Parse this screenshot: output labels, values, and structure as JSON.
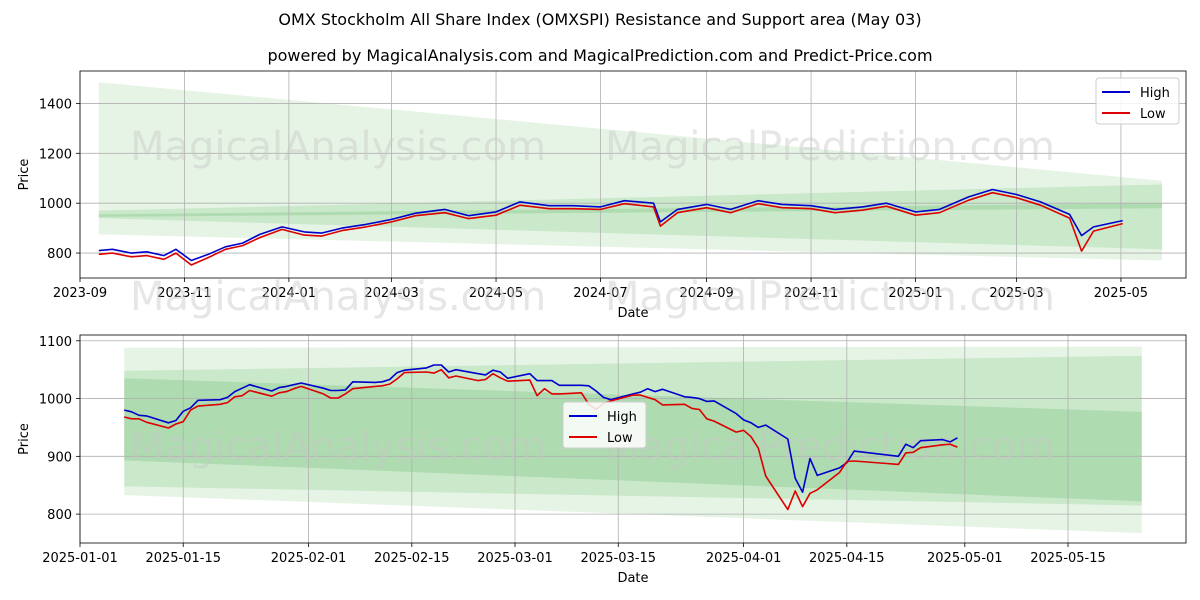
{
  "figure": {
    "title": "OMX Stockholm All Share Index (OMXSPI) Resistance and Support area (May 03)",
    "subtitle": "powered by MagicalAnalysis.com and MagicalPrediction.com and Predict-Price.com",
    "watermarks": [
      "MagicalAnalysis.com",
      "MagicalPrediction.com"
    ],
    "colors": {
      "high": "#0000cc",
      "low": "#dd0000",
      "band": "#4caf50"
    }
  },
  "chart_data": [
    {
      "type": "line",
      "xlabel": "Date",
      "ylabel": "Price",
      "xlim": [
        "2023-09-01",
        "2025-06-08"
      ],
      "ylim": [
        700,
        1530
      ],
      "x_ticks": [
        "2023-09",
        "2023-11",
        "2024-01",
        "2024-03",
        "2024-05",
        "2024-07",
        "2024-09",
        "2024-11",
        "2025-01",
        "2025-03",
        "2025-05"
      ],
      "y_ticks": [
        800,
        1000,
        1200,
        1400
      ],
      "grid": true,
      "legend": "top-right",
      "bands": [
        {
          "name": "outer",
          "x": [
            "2023-09-12",
            "2025-05-25"
          ],
          "upper": [
            1485,
            1090
          ],
          "lower": [
            875,
            770
          ]
        },
        {
          "name": "inner",
          "x": [
            "2023-09-12",
            "2025-05-25"
          ],
          "upper": [
            970,
            1075
          ],
          "lower": [
            940,
            815
          ]
        },
        {
          "name": "mid",
          "x": [
            "2023-09-12",
            "2025-05-25"
          ],
          "upper": [
            955,
            1000
          ],
          "lower": [
            945,
            980
          ]
        }
      ],
      "x": [
        "2023-09-12",
        "2023-09-20",
        "2023-10-01",
        "2023-10-10",
        "2023-10-20",
        "2023-10-27",
        "2023-11-05",
        "2023-11-15",
        "2023-11-25",
        "2023-12-05",
        "2023-12-15",
        "2023-12-28",
        "2024-01-10",
        "2024-01-20",
        "2024-02-01",
        "2024-02-15",
        "2024-03-01",
        "2024-03-15",
        "2024-04-01",
        "2024-04-15",
        "2024-05-01",
        "2024-05-15",
        "2024-06-01",
        "2024-06-15",
        "2024-07-01",
        "2024-07-15",
        "2024-08-01",
        "2024-08-05",
        "2024-08-15",
        "2024-09-01",
        "2024-09-15",
        "2024-10-01",
        "2024-10-15",
        "2024-11-01",
        "2024-11-15",
        "2024-12-01",
        "2024-12-15",
        "2025-01-01",
        "2025-01-15",
        "2025-02-01",
        "2025-02-15",
        "2025-03-01",
        "2025-03-15",
        "2025-04-01",
        "2025-04-08",
        "2025-04-15",
        "2025-05-02"
      ],
      "series": [
        {
          "name": "High",
          "values": [
            810,
            815,
            800,
            805,
            790,
            815,
            770,
            795,
            825,
            840,
            875,
            905,
            885,
            880,
            900,
            915,
            935,
            960,
            975,
            950,
            965,
            1005,
            990,
            990,
            985,
            1010,
            1000,
            925,
            975,
            995,
            975,
            1010,
            995,
            990,
            975,
            985,
            1000,
            965,
            975,
            1025,
            1055,
            1035,
            1005,
            955,
            870,
            905,
            930
          ]
        },
        {
          "name": "Low",
          "values": [
            795,
            800,
            785,
            790,
            775,
            800,
            752,
            782,
            815,
            830,
            862,
            895,
            872,
            868,
            890,
            905,
            925,
            950,
            962,
            938,
            952,
            992,
            978,
            978,
            975,
            998,
            985,
            908,
            962,
            982,
            962,
            998,
            982,
            978,
            962,
            972,
            988,
            952,
            962,
            1012,
            1042,
            1022,
            992,
            940,
            808,
            888,
            918
          ]
        }
      ]
    },
    {
      "type": "line",
      "xlabel": "Date",
      "ylabel": "Price",
      "xlim": [
        "2025-01-01",
        "2025-05-31"
      ],
      "ylim": [
        750,
        1110
      ],
      "x_ticks": [
        "2025-01-01",
        "2025-01-15",
        "2025-02-01",
        "2025-02-15",
        "2025-03-01",
        "2025-03-15",
        "2025-04-01",
        "2025-04-15",
        "2025-05-01",
        "2025-05-15"
      ],
      "y_ticks": [
        800,
        900,
        1000,
        1100
      ],
      "grid": true,
      "legend": "center",
      "bands": [
        {
          "name": "outer",
          "x": [
            "2025-01-07",
            "2025-05-25"
          ],
          "upper": [
            1088,
            1090
          ],
          "lower": [
            833,
            767
          ]
        },
        {
          "name": "inner",
          "x": [
            "2025-01-07",
            "2025-05-25"
          ],
          "upper": [
            1048,
            1074
          ],
          "lower": [
            848,
            815
          ]
        },
        {
          "name": "mid",
          "x": [
            "2025-01-07",
            "2025-05-25"
          ],
          "upper": [
            1035,
            977
          ],
          "lower": [
            893,
            822
          ]
        }
      ],
      "x": [
        "2025-01-07",
        "2025-01-08",
        "2025-01-09",
        "2025-01-10",
        "2025-01-13",
        "2025-01-14",
        "2025-01-15",
        "2025-01-16",
        "2025-01-17",
        "2025-01-20",
        "2025-01-21",
        "2025-01-22",
        "2025-01-23",
        "2025-01-24",
        "2025-01-27",
        "2025-01-28",
        "2025-01-29",
        "2025-01-30",
        "2025-01-31",
        "2025-02-03",
        "2025-02-04",
        "2025-02-05",
        "2025-02-06",
        "2025-02-07",
        "2025-02-10",
        "2025-02-11",
        "2025-02-12",
        "2025-02-13",
        "2025-02-14",
        "2025-02-17",
        "2025-02-18",
        "2025-02-19",
        "2025-02-20",
        "2025-02-21",
        "2025-02-24",
        "2025-02-25",
        "2025-02-26",
        "2025-02-27",
        "2025-02-28",
        "2025-03-03",
        "2025-03-04",
        "2025-03-05",
        "2025-03-06",
        "2025-03-07",
        "2025-03-10",
        "2025-03-11",
        "2025-03-12",
        "2025-03-13",
        "2025-03-14",
        "2025-03-17",
        "2025-03-18",
        "2025-03-19",
        "2025-03-20",
        "2025-03-21",
        "2025-03-24",
        "2025-03-25",
        "2025-03-26",
        "2025-03-27",
        "2025-03-28",
        "2025-03-31",
        "2025-04-01",
        "2025-04-02",
        "2025-04-03",
        "2025-04-04",
        "2025-04-07",
        "2025-04-08",
        "2025-04-09",
        "2025-04-10",
        "2025-04-11",
        "2025-04-14",
        "2025-04-15",
        "2025-04-16",
        "2025-04-22",
        "2025-04-23",
        "2025-04-24",
        "2025-04-25",
        "2025-04-28",
        "2025-04-29",
        "2025-04-30"
      ],
      "series": [
        {
          "name": "High",
          "values": [
            980,
            977,
            971,
            970,
            958,
            962,
            978,
            984,
            997,
            998,
            1002,
            1012,
            1018,
            1024,
            1013,
            1019,
            1021,
            1024,
            1027,
            1018,
            1014,
            1014,
            1015,
            1029,
            1028,
            1029,
            1033,
            1045,
            1049,
            1053,
            1058,
            1058,
            1046,
            1050,
            1043,
            1041,
            1049,
            1046,
            1035,
            1043,
            1031,
            1031,
            1031,
            1023,
            1023,
            1022,
            1013,
            1002,
            998,
            1008,
            1011,
            1017,
            1012,
            1016,
            1003,
            1002,
            1000,
            995,
            996,
            974,
            963,
            958,
            950,
            954,
            930,
            862,
            838,
            896,
            867,
            880,
            889,
            909,
            900,
            921,
            915,
            927,
            929,
            925,
            932
          ]
        },
        {
          "name": "Low",
          "values": [
            968,
            965,
            965,
            959,
            949,
            956,
            960,
            980,
            987,
            990,
            993,
            1003,
            1005,
            1014,
            1004,
            1010,
            1012,
            1017,
            1021,
            1008,
            1001,
            1001,
            1008,
            1017,
            1021,
            1022,
            1025,
            1034,
            1045,
            1046,
            1044,
            1050,
            1036,
            1039,
            1031,
            1033,
            1043,
            1036,
            1030,
            1032,
            1005,
            1017,
            1008,
            1008,
            1010,
            990,
            981,
            992,
            996,
            1006,
            1006,
            1002,
            998,
            989,
            990,
            983,
            981,
            965,
            961,
            942,
            945,
            934,
            914,
            866,
            808,
            840,
            813,
            836,
            842,
            872,
            891,
            892,
            886,
            906,
            907,
            915,
            920,
            921,
            916
          ]
        }
      ]
    }
  ]
}
